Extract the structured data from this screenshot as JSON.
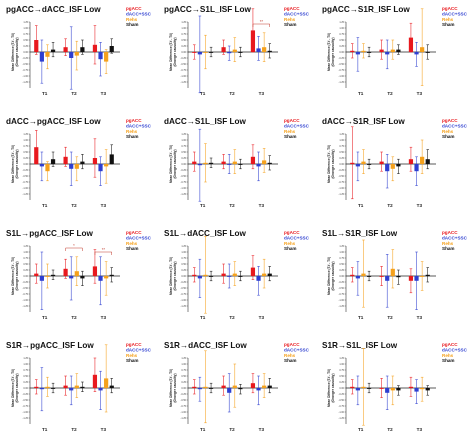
{
  "legend": [
    {
      "name": "pgACC",
      "color": "#e8191e"
    },
    {
      "name": "dACC+SSC",
      "color": "#2e3fd0"
    },
    {
      "name": "Rehs",
      "color": "#f5a11c"
    },
    {
      "name": "Sham",
      "color": "#111111"
    }
  ],
  "ylabel": "Mean Difference (T# - T0)\n(Granger causality)",
  "chart_data": [
    {
      "type": "bar",
      "title": "pgACC→dACC_ISF Low",
      "categories": [
        "T1",
        "T2",
        "T3"
      ],
      "series": [
        {
          "name": "pgACC",
          "values": [
            0.5,
            0.2,
            0.3
          ],
          "err": [
            0.6,
            0.35,
            0.8
          ]
        },
        {
          "name": "dACC+SSC",
          "values": [
            -0.4,
            -0.25,
            -0.3
          ],
          "err": [
            0.9,
            1.3,
            0.7
          ]
        },
        {
          "name": "Rehs",
          "values": [
            -0.2,
            -0.15,
            -0.4
          ],
          "err": [
            0.5,
            0.6,
            0.5
          ]
        },
        {
          "name": "Sham",
          "values": [
            0.1,
            0.2,
            0.25
          ],
          "err": [
            0.3,
            0.3,
            0.3
          ]
        }
      ],
      "sig": []
    },
    {
      "type": "bar",
      "title": "pgACC→S1L_ISF Low",
      "categories": [
        "T1",
        "T2",
        "T3"
      ],
      "series": [
        {
          "name": "pgACC",
          "values": [
            0.0,
            0.2,
            0.9
          ],
          "err": [
            0.3,
            0.3,
            0.9
          ]
        },
        {
          "name": "dACC+SSC",
          "values": [
            -0.1,
            -0.05,
            0.15
          ],
          "err": [
            1.6,
            0.3,
            0.5
          ]
        },
        {
          "name": "Rehs",
          "values": [
            0.0,
            0.1,
            0.2
          ],
          "err": [
            0.7,
            0.5,
            0.6
          ]
        },
        {
          "name": "Sham",
          "values": [
            0.0,
            0.0,
            0.05
          ],
          "err": [
            0.2,
            0.2,
            0.3
          ]
        }
      ],
      "sig": [
        {
          "from": 2,
          "label": "**"
        }
      ]
    },
    {
      "type": "bar",
      "title": "pgACC→S1R_ISF Low",
      "categories": [
        "T1",
        "T2",
        "T3"
      ],
      "series": [
        {
          "name": "pgACC",
          "values": [
            0.05,
            0.1,
            0.6
          ],
          "err": [
            0.3,
            0.4,
            0.6
          ]
        },
        {
          "name": "dACC+SSC",
          "values": [
            -0.1,
            -0.1,
            -0.1
          ],
          "err": [
            0.7,
            0.6,
            0.5
          ]
        },
        {
          "name": "Rehs",
          "values": [
            0.05,
            0.1,
            0.2
          ],
          "err": [
            0.3,
            0.4,
            1.6
          ]
        },
        {
          "name": "Sham",
          "values": [
            0.0,
            0.1,
            0.0
          ],
          "err": [
            0.2,
            0.2,
            0.3
          ]
        }
      ],
      "sig": []
    },
    {
      "type": "bar",
      "title": "dACC→pgACC_ISF Low",
      "categories": [
        "T1",
        "T2",
        "T3"
      ],
      "series": [
        {
          "name": "pgACC",
          "values": [
            0.7,
            0.3,
            0.25
          ],
          "err": [
            0.7,
            0.4,
            0.8
          ]
        },
        {
          "name": "dACC+SSC",
          "values": [
            -0.1,
            -0.2,
            -0.3
          ],
          "err": [
            0.6,
            0.7,
            0.6
          ]
        },
        {
          "name": "Rehs",
          "values": [
            -0.3,
            -0.2,
            -0.1
          ],
          "err": [
            0.4,
            0.5,
            0.7
          ]
        },
        {
          "name": "Sham",
          "values": [
            0.2,
            0.1,
            0.4
          ],
          "err": [
            0.3,
            0.3,
            0.4
          ]
        }
      ],
      "sig": []
    },
    {
      "type": "bar",
      "title": "dACC→S1L_ISF Low",
      "categories": [
        "T1",
        "T2",
        "T3"
      ],
      "series": [
        {
          "name": "pgACC",
          "values": [
            0.1,
            0.1,
            0.3
          ],
          "err": [
            0.4,
            0.3,
            0.5
          ]
        },
        {
          "name": "dACC+SSC",
          "values": [
            -0.05,
            0.0,
            -0.1
          ],
          "err": [
            1.5,
            0.4,
            0.6
          ]
        },
        {
          "name": "Rehs",
          "values": [
            0.05,
            0.1,
            0.15
          ],
          "err": [
            0.8,
            0.5,
            0.5
          ]
        },
        {
          "name": "Sham",
          "values": [
            0.05,
            0.0,
            0.05
          ],
          "err": [
            0.2,
            0.2,
            0.3
          ]
        }
      ],
      "sig": []
    },
    {
      "type": "bar",
      "title": "dACC→S1R_ISF Low",
      "categories": [
        "T1",
        "T2",
        "T3"
      ],
      "series": [
        {
          "name": "pgACC",
          "values": [
            0.05,
            0.1,
            0.2
          ],
          "err": [
            1.5,
            0.4,
            0.5
          ]
        },
        {
          "name": "dACC+SSC",
          "values": [
            -0.1,
            -0.3,
            -0.3
          ],
          "err": [
            0.6,
            0.7,
            0.6
          ]
        },
        {
          "name": "Rehs",
          "values": [
            0.1,
            -0.2,
            0.3
          ],
          "err": [
            0.5,
            0.5,
            0.7
          ]
        },
        {
          "name": "Sham",
          "values": [
            0.0,
            -0.1,
            0.2
          ],
          "err": [
            0.2,
            0.3,
            0.4
          ]
        }
      ],
      "sig": []
    },
    {
      "type": "bar",
      "title": "S1L→pgACC_ISF Low",
      "categories": [
        "T1",
        "T2",
        "T3"
      ],
      "series": [
        {
          "name": "pgACC",
          "values": [
            0.1,
            0.3,
            0.4
          ],
          "err": [
            0.4,
            0.4,
            0.7
          ]
        },
        {
          "name": "dACC+SSC",
          "values": [
            -0.2,
            -0.1,
            -0.2
          ],
          "err": [
            1.2,
            0.9,
            1.0
          ]
        },
        {
          "name": "Rehs",
          "values": [
            0.0,
            0.2,
            -0.1
          ],
          "err": [
            0.5,
            0.6,
            0.7
          ]
        },
        {
          "name": "Sham",
          "values": [
            0.05,
            -0.1,
            0.05
          ],
          "err": [
            0.2,
            0.3,
            0.3
          ]
        }
      ],
      "sig": [
        {
          "from": 1,
          "label": "*"
        },
        {
          "from": 2,
          "label": "**"
        }
      ]
    },
    {
      "type": "bar",
      "title": "S1L→dACC_ISF Low",
      "categories": [
        "T1",
        "T2",
        "T3"
      ],
      "series": [
        {
          "name": "pgACC",
          "values": [
            0.05,
            0.1,
            0.35
          ],
          "err": [
            0.3,
            0.4,
            0.5
          ]
        },
        {
          "name": "dACC+SSC",
          "values": [
            -0.1,
            0.0,
            -0.2
          ],
          "err": [
            0.8,
            0.5,
            0.6
          ]
        },
        {
          "name": "Rehs",
          "values": [
            0.05,
            0.1,
            0.1
          ],
          "err": [
            1.6,
            0.5,
            0.6
          ]
        },
        {
          "name": "Sham",
          "values": [
            0.0,
            0.0,
            0.1
          ],
          "err": [
            0.2,
            0.2,
            0.3
          ]
        }
      ],
      "sig": []
    },
    {
      "type": "bar",
      "title": "S1L→S1R_ISF Low",
      "categories": [
        "T1",
        "T2",
        "T3"
      ],
      "series": [
        {
          "name": "pgACC",
          "values": [
            0.05,
            0.0,
            -0.2
          ],
          "err": [
            0.3,
            0.4,
            0.5
          ]
        },
        {
          "name": "dACC+SSC",
          "values": [
            -0.1,
            -0.2,
            -0.2
          ],
          "err": [
            0.7,
            1.1,
            1.2
          ]
        },
        {
          "name": "Rehs",
          "values": [
            0.1,
            0.3,
            0.0
          ],
          "err": [
            1.4,
            0.8,
            0.6
          ]
        },
        {
          "name": "Sham",
          "values": [
            0.0,
            -0.05,
            0.05
          ],
          "err": [
            0.2,
            0.3,
            0.3
          ]
        }
      ],
      "sig": []
    },
    {
      "type": "bar",
      "title": "S1R→pgACC_ISF Low",
      "categories": [
        "T1",
        "T2",
        "T3"
      ],
      "series": [
        {
          "name": "pgACC",
          "values": [
            0.05,
            0.1,
            0.55
          ],
          "err": [
            0.3,
            0.4,
            0.7
          ]
        },
        {
          "name": "dACC+SSC",
          "values": [
            -0.05,
            -0.1,
            -0.1
          ],
          "err": [
            0.9,
            0.6,
            0.8
          ]
        },
        {
          "name": "Rehs",
          "values": [
            0.05,
            0.1,
            0.4
          ],
          "err": [
            0.4,
            0.5,
            1.4
          ]
        },
        {
          "name": "Sham",
          "values": [
            0.0,
            0.05,
            0.1
          ],
          "err": [
            0.2,
            0.2,
            0.3
          ]
        }
      ],
      "sig": []
    },
    {
      "type": "bar",
      "title": "S1R→dACC_ISF Low",
      "categories": [
        "T1",
        "T2",
        "T3"
      ],
      "series": [
        {
          "name": "pgACC",
          "values": [
            0.05,
            0.1,
            0.2
          ],
          "err": [
            0.3,
            0.4,
            0.4
          ]
        },
        {
          "name": "dACC+SSC",
          "values": [
            -0.05,
            -0.2,
            -0.1
          ],
          "err": [
            0.5,
            0.8,
            0.6
          ]
        },
        {
          "name": "Rehs",
          "values": [
            0.05,
            0.1,
            0.1
          ],
          "err": [
            1.5,
            0.9,
            0.5
          ]
        },
        {
          "name": "Sham",
          "values": [
            0.0,
            -0.05,
            0.1
          ],
          "err": [
            0.2,
            0.2,
            0.3
          ]
        }
      ],
      "sig": []
    },
    {
      "type": "bar",
      "title": "S1R→S1L_ISF Low",
      "categories": [
        "T1",
        "T2",
        "T3"
      ],
      "series": [
        {
          "name": "pgACC",
          "values": [
            0.05,
            0.0,
            0.05
          ],
          "err": [
            0.3,
            0.4,
            0.4
          ]
        },
        {
          "name": "dACC+SSC",
          "values": [
            -0.1,
            -0.2,
            -0.15
          ],
          "err": [
            0.6,
            0.7,
            0.5
          ]
        },
        {
          "name": "Rehs",
          "values": [
            0.05,
            -0.1,
            -0.05
          ],
          "err": [
            1.6,
            0.6,
            0.5
          ]
        },
        {
          "name": "Sham",
          "values": [
            0.0,
            -0.1,
            -0.1
          ],
          "err": [
            0.2,
            0.2,
            0.2
          ]
        }
      ],
      "sig": []
    }
  ]
}
